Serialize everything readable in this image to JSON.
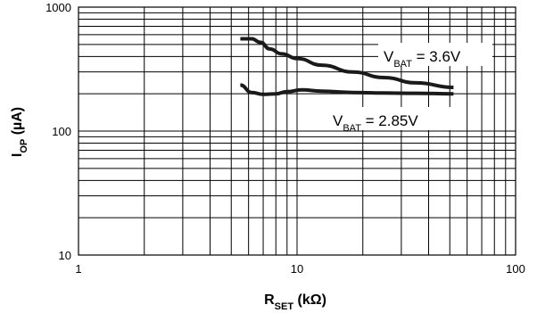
{
  "chart_data": {
    "type": "line",
    "title": "",
    "xlabel": {
      "main": "R",
      "sub": "SET",
      "unit": " (kΩ)"
    },
    "ylabel": {
      "main": "I",
      "sub": "OP",
      "unit": " (µA)"
    },
    "xscale": "log",
    "yscale": "log",
    "xlim": [
      1,
      100
    ],
    "ylim": [
      10,
      1000
    ],
    "grid": true,
    "x_ticks": [
      {
        "value": 1,
        "label": "1"
      },
      {
        "value": 10,
        "label": "10"
      },
      {
        "value": 100,
        "label": "100"
      }
    ],
    "y_ticks": [
      {
        "value": 10,
        "label": "10"
      },
      {
        "value": 100,
        "label": "100"
      },
      {
        "value": 1000,
        "label": "1000"
      }
    ],
    "series": [
      {
        "label": {
          "main": "V",
          "sub": "BAT",
          "rest": " = 3.6V"
        },
        "x": [
          5.5,
          6.2,
          6.8,
          7.5,
          8.5,
          10,
          13,
          18,
          25,
          35,
          52
        ],
        "y": [
          555,
          555,
          520,
          460,
          420,
          385,
          340,
          300,
          270,
          245,
          225
        ]
      },
      {
        "label": {
          "main": "V",
          "sub": "BAT",
          "rest": " = 2.85V"
        },
        "x": [
          5.5,
          6.2,
          7,
          8,
          9,
          10.5,
          13,
          18,
          25,
          35,
          52
        ],
        "y": [
          235,
          205,
          198,
          200,
          208,
          215,
          210,
          205,
          203,
          202,
          200
        ]
      }
    ]
  }
}
